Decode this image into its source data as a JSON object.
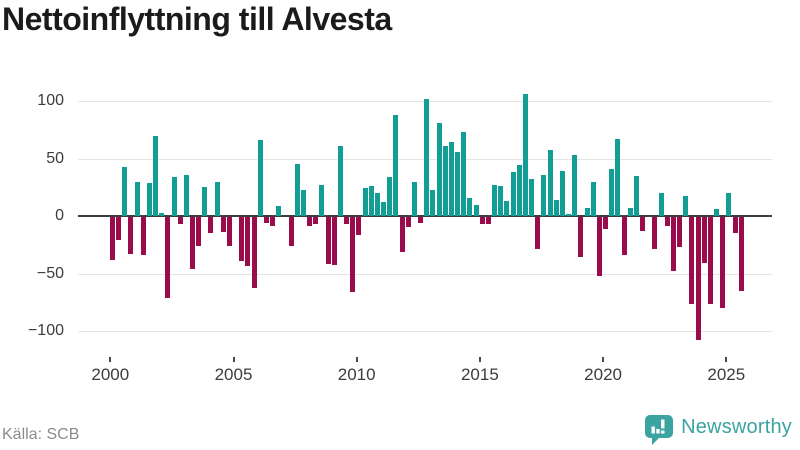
{
  "header": {
    "title": "Nettoinflyttning till Alvesta"
  },
  "footer": {
    "source": "Källa: SCB",
    "brand": "Newsworthy"
  },
  "colors": {
    "positive_bar": "#129d95",
    "negative_bar": "#9a0c4b",
    "zero_line": "#3e3e3e",
    "gridline": "#e4e4e4",
    "axis_text": "#3c3c3c",
    "title_text": "#1b1b1b",
    "source_text": "#8c8c8c",
    "brand_teal": "#3ba3a0"
  },
  "icons": {
    "brand": "newsworthy-speech-bubble-bar-chart-icon"
  },
  "chart_data": {
    "type": "bar",
    "title": "Nettoinflyttning till Alvesta",
    "frequency": "quarterly",
    "start_period": "2000 Q1",
    "end_period": "2025 Q3",
    "values": [
      -37,
      -20,
      43,
      -32,
      30,
      -33,
      29,
      70,
      3,
      -70,
      34,
      -6,
      36,
      -45,
      -25,
      25,
      -14,
      30,
      -13,
      -25,
      0,
      -38,
      -43,
      -62,
      66,
      -5,
      -8,
      9,
      0,
      -25,
      45,
      23,
      -8,
      -6,
      27,
      -41,
      -42,
      61,
      -6,
      -65,
      -16,
      24,
      26,
      20,
      12,
      34,
      88,
      -30,
      -9,
      30,
      -5,
      102,
      23,
      81,
      61,
      64,
      56,
      73,
      16,
      10,
      -6,
      -6,
      27,
      26,
      13,
      38,
      44,
      106,
      32,
      -28,
      36,
      57,
      14,
      39,
      2,
      53,
      -35,
      7,
      30,
      -51,
      -10,
      41,
      67,
      -33,
      7,
      35,
      -12,
      0,
      -28,
      20,
      -8,
      -47,
      -26,
      17,
      -76,
      -107,
      -40,
      -76,
      6,
      -79,
      20,
      -14,
      -64
    ],
    "x_tick_labels": [
      "2000",
      "2005",
      "2010",
      "2015",
      "2020",
      "2025"
    ],
    "y_ticks": [
      100,
      50,
      0,
      -50,
      -100
    ],
    "y_tick_labels": [
      "100",
      "50",
      "0",
      "−50",
      "−100"
    ],
    "ylim": [
      -115,
      115
    ],
    "grid": "horizontal",
    "legend": "none",
    "positive_color": "#129d95",
    "negative_color": "#9a0c4b"
  }
}
